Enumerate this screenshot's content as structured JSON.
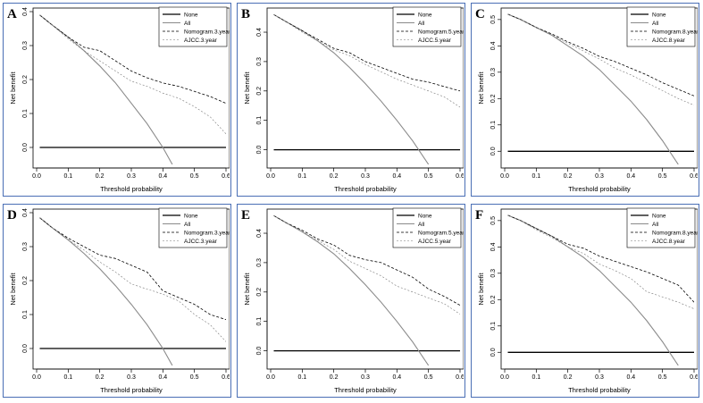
{
  "chart_data": [
    {
      "panel_label": "A",
      "type": "line",
      "xlabel": "Threshold probability",
      "ylabel": "Net benefit",
      "xlim": [
        0.0,
        0.6
      ],
      "ylim": [
        -0.05,
        0.4
      ],
      "xticks": [
        "0.0",
        "0.1",
        "0.2",
        "0.3",
        "0.4",
        "0.5",
        "0.6"
      ],
      "yticks": [
        "0.0",
        "0.1",
        "0.2",
        "0.3",
        "0.4"
      ],
      "legend": [
        "None",
        "All",
        "Nomogram.3.year",
        "AJCC.3.year"
      ],
      "x": [
        0.01,
        0.05,
        0.1,
        0.15,
        0.2,
        0.25,
        0.3,
        0.35,
        0.4,
        0.45,
        0.5,
        0.55,
        0.6
      ],
      "series": [
        {
          "name": "None",
          "style": "solid-black",
          "values": [
            0,
            0,
            0,
            0,
            0,
            0,
            0,
            0,
            0,
            0,
            0,
            0,
            0
          ]
        },
        {
          "name": "All",
          "style": "solid-gray",
          "x": [
            0.01,
            0.05,
            0.1,
            0.15,
            0.2,
            0.25,
            0.3,
            0.35,
            0.4,
            0.43
          ],
          "values": [
            0.39,
            0.36,
            0.325,
            0.285,
            0.24,
            0.19,
            0.13,
            0.07,
            0.0,
            -0.05
          ]
        },
        {
          "name": "Nomogram.3.year",
          "style": "dashed-black",
          "values": [
            0.39,
            0.36,
            0.325,
            0.295,
            0.285,
            0.255,
            0.225,
            0.205,
            0.19,
            0.18,
            0.165,
            0.15,
            0.13
          ]
        },
        {
          "name": "AJCC.3.year",
          "style": "dashed-gray",
          "values": [
            0.39,
            0.36,
            0.32,
            0.285,
            0.255,
            0.225,
            0.195,
            0.18,
            0.16,
            0.145,
            0.12,
            0.09,
            0.04
          ]
        }
      ]
    },
    {
      "panel_label": "B",
      "type": "line",
      "xlabel": "Threshold probability",
      "ylabel": "Net benefit",
      "xlim": [
        0.0,
        0.6
      ],
      "ylim": [
        -0.05,
        0.47
      ],
      "xticks": [
        "0.0",
        "0.1",
        "0.2",
        "0.3",
        "0.4",
        "0.5",
        "0.6"
      ],
      "yticks": [
        "0.0",
        "0.1",
        "0.2",
        "0.3",
        "0.4"
      ],
      "legend": [
        "None",
        "All",
        "Nomogram.5.year",
        "AJCC.5.year"
      ],
      "x": [
        0.01,
        0.05,
        0.1,
        0.15,
        0.2,
        0.25,
        0.3,
        0.35,
        0.4,
        0.45,
        0.5,
        0.55,
        0.6
      ],
      "series": [
        {
          "name": "None",
          "style": "solid-black",
          "values": [
            0,
            0,
            0,
            0,
            0,
            0,
            0,
            0,
            0,
            0,
            0,
            0,
            0
          ]
        },
        {
          "name": "All",
          "style": "solid-gray",
          "x": [
            0.01,
            0.05,
            0.1,
            0.15,
            0.2,
            0.25,
            0.3,
            0.35,
            0.4,
            0.45,
            0.5
          ],
          "values": [
            0.46,
            0.435,
            0.405,
            0.37,
            0.33,
            0.28,
            0.225,
            0.165,
            0.1,
            0.03,
            -0.05
          ]
        },
        {
          "name": "Nomogram.5.year",
          "style": "dashed-black",
          "values": [
            0.46,
            0.435,
            0.405,
            0.375,
            0.345,
            0.33,
            0.3,
            0.28,
            0.26,
            0.24,
            0.23,
            0.215,
            0.2
          ]
        },
        {
          "name": "AJCC.5.year",
          "style": "dashed-gray",
          "values": [
            0.46,
            0.435,
            0.4,
            0.37,
            0.34,
            0.32,
            0.29,
            0.265,
            0.24,
            0.22,
            0.2,
            0.18,
            0.145
          ]
        }
      ]
    },
    {
      "panel_label": "C",
      "type": "line",
      "xlabel": "Threshold probability",
      "ylabel": "Net benefit",
      "xlim": [
        0.0,
        0.6
      ],
      "ylim": [
        -0.05,
        0.53
      ],
      "xticks": [
        "0.0",
        "0.1",
        "0.2",
        "0.3",
        "0.4",
        "0.5",
        "0.6"
      ],
      "yticks": [
        "0.0",
        "0.1",
        "0.2",
        "0.3",
        "0.4",
        "0.5"
      ],
      "legend": [
        "None",
        "All",
        "Nomogram.8.year",
        "AJCC.8.year"
      ],
      "x": [
        0.01,
        0.05,
        0.1,
        0.15,
        0.2,
        0.25,
        0.3,
        0.35,
        0.4,
        0.45,
        0.5,
        0.55,
        0.6
      ],
      "series": [
        {
          "name": "None",
          "style": "solid-black",
          "values": [
            0,
            0,
            0,
            0,
            0,
            0,
            0,
            0,
            0,
            0,
            0,
            0,
            0
          ]
        },
        {
          "name": "All",
          "style": "solid-gray",
          "x": [
            0.01,
            0.05,
            0.1,
            0.15,
            0.2,
            0.25,
            0.3,
            0.35,
            0.4,
            0.45,
            0.5,
            0.55
          ],
          "values": [
            0.52,
            0.5,
            0.47,
            0.44,
            0.4,
            0.36,
            0.31,
            0.25,
            0.19,
            0.12,
            0.04,
            -0.05
          ]
        },
        {
          "name": "Nomogram.8.year",
          "style": "dashed-black",
          "values": [
            0.52,
            0.5,
            0.47,
            0.445,
            0.415,
            0.39,
            0.36,
            0.34,
            0.315,
            0.29,
            0.26,
            0.235,
            0.21
          ]
        },
        {
          "name": "AJCC.8.year",
          "style": "dashed-gray",
          "values": [
            0.52,
            0.5,
            0.47,
            0.44,
            0.41,
            0.38,
            0.35,
            0.315,
            0.29,
            0.26,
            0.23,
            0.2,
            0.175
          ]
        }
      ]
    },
    {
      "panel_label": "D",
      "type": "line",
      "xlabel": "Threshold probability",
      "ylabel": "Net benefit",
      "xlim": [
        0.0,
        0.6
      ],
      "ylim": [
        -0.05,
        0.4
      ],
      "xticks": [
        "0.0",
        "0.1",
        "0.2",
        "0.3",
        "0.4",
        "0.5",
        "0.6"
      ],
      "yticks": [
        "0.0",
        "0.1",
        "0.2",
        "0.3",
        "0.4"
      ],
      "legend": [
        "None",
        "All",
        "Nomogram.3.year",
        "AJCC.3.year"
      ],
      "x": [
        0.01,
        0.05,
        0.1,
        0.15,
        0.2,
        0.25,
        0.3,
        0.35,
        0.4,
        0.45,
        0.5,
        0.55,
        0.6
      ],
      "series": [
        {
          "name": "None",
          "style": "solid-black",
          "values": [
            0,
            0,
            0,
            0,
            0,
            0,
            0,
            0,
            0,
            0,
            0,
            0,
            0
          ]
        },
        {
          "name": "All",
          "style": "solid-gray",
          "x": [
            0.01,
            0.05,
            0.1,
            0.15,
            0.2,
            0.25,
            0.3,
            0.35,
            0.4,
            0.43
          ],
          "values": [
            0.385,
            0.355,
            0.32,
            0.28,
            0.235,
            0.185,
            0.13,
            0.07,
            0.0,
            -0.05
          ]
        },
        {
          "name": "Nomogram.3.year",
          "style": "dashed-black",
          "values": [
            0.385,
            0.355,
            0.325,
            0.3,
            0.275,
            0.265,
            0.245,
            0.225,
            0.17,
            0.15,
            0.13,
            0.1,
            0.085
          ]
        },
        {
          "name": "AJCC.3.year",
          "style": "dashed-gray",
          "values": [
            0.385,
            0.355,
            0.32,
            0.29,
            0.255,
            0.225,
            0.19,
            0.175,
            0.16,
            0.14,
            0.1,
            0.07,
            0.02
          ]
        }
      ]
    },
    {
      "panel_label": "E",
      "type": "line",
      "xlabel": "Threshold probability",
      "ylabel": "Net benefit",
      "xlim": [
        0.0,
        0.6
      ],
      "ylim": [
        -0.05,
        0.47
      ],
      "xticks": [
        "0.0",
        "0.1",
        "0.2",
        "0.3",
        "0.4",
        "0.5",
        "0.6"
      ],
      "yticks": [
        "0.0",
        "0.1",
        "0.2",
        "0.3",
        "0.4"
      ],
      "legend": [
        "None",
        "All",
        "Nomogram.5.year",
        "AJCC.5.year"
      ],
      "x": [
        0.01,
        0.05,
        0.1,
        0.15,
        0.2,
        0.25,
        0.3,
        0.35,
        0.4,
        0.45,
        0.5,
        0.55,
        0.6
      ],
      "series": [
        {
          "name": "None",
          "style": "solid-black",
          "values": [
            0,
            0,
            0,
            0,
            0,
            0,
            0,
            0,
            0,
            0,
            0,
            0,
            0
          ]
        },
        {
          "name": "All",
          "style": "solid-gray",
          "x": [
            0.01,
            0.05,
            0.1,
            0.15,
            0.2,
            0.25,
            0.3,
            0.35,
            0.4,
            0.45,
            0.5
          ],
          "values": [
            0.46,
            0.435,
            0.405,
            0.37,
            0.33,
            0.28,
            0.225,
            0.165,
            0.1,
            0.03,
            -0.05
          ]
        },
        {
          "name": "Nomogram.5.year",
          "style": "dashed-black",
          "values": [
            0.46,
            0.435,
            0.41,
            0.38,
            0.36,
            0.325,
            0.31,
            0.3,
            0.275,
            0.25,
            0.21,
            0.185,
            0.155
          ]
        },
        {
          "name": "AJCC.5.year",
          "style": "dashed-gray",
          "values": [
            0.46,
            0.435,
            0.405,
            0.375,
            0.345,
            0.305,
            0.28,
            0.255,
            0.22,
            0.2,
            0.18,
            0.16,
            0.125
          ]
        }
      ]
    },
    {
      "panel_label": "F",
      "type": "line",
      "xlabel": "Threshold probability",
      "ylabel": "Net benefit",
      "xlim": [
        0.0,
        0.6
      ],
      "ylim": [
        -0.05,
        0.53
      ],
      "xticks": [
        "0.0",
        "0.1",
        "0.2",
        "0.3",
        "0.4",
        "0.5",
        "0.6"
      ],
      "yticks": [
        "0.0",
        "0.1",
        "0.2",
        "0.3",
        "0.4",
        "0.5"
      ],
      "legend": [
        "None",
        "All",
        "Nomogram.8.year",
        "AJCC.8.year"
      ],
      "x": [
        0.01,
        0.05,
        0.1,
        0.15,
        0.2,
        0.25,
        0.3,
        0.35,
        0.4,
        0.45,
        0.5,
        0.55,
        0.6
      ],
      "series": [
        {
          "name": "None",
          "style": "solid-black",
          "values": [
            0,
            0,
            0,
            0,
            0,
            0,
            0,
            0,
            0,
            0,
            0,
            0,
            0
          ]
        },
        {
          "name": "All",
          "style": "solid-gray",
          "x": [
            0.01,
            0.05,
            0.1,
            0.15,
            0.2,
            0.25,
            0.3,
            0.35,
            0.4,
            0.45,
            0.5,
            0.55
          ],
          "values": [
            0.52,
            0.5,
            0.47,
            0.44,
            0.4,
            0.36,
            0.31,
            0.25,
            0.19,
            0.12,
            0.04,
            -0.05
          ]
        },
        {
          "name": "Nomogram.8.year",
          "style": "dashed-black",
          "values": [
            0.52,
            0.5,
            0.47,
            0.44,
            0.41,
            0.395,
            0.365,
            0.345,
            0.325,
            0.305,
            0.28,
            0.255,
            0.19
          ]
        },
        {
          "name": "AJCC.8.year",
          "style": "dashed-gray",
          "values": [
            0.52,
            0.5,
            0.465,
            0.435,
            0.4,
            0.375,
            0.335,
            0.31,
            0.28,
            0.23,
            0.21,
            0.19,
            0.165
          ]
        }
      ]
    }
  ]
}
